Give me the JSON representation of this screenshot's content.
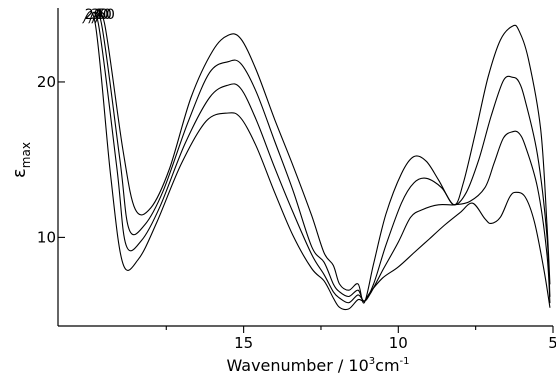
{
  "chart_data": {
    "type": "line",
    "title": "",
    "xlabel": "Wavenumber / 10",
    "xlabel_power": "3",
    "xlabel_unit": "cm",
    "xlabel_unit_power": "-1",
    "ylabel": "ε",
    "ylabel_sub": "max",
    "xlim": [
      21.0,
      5.0
    ],
    "ylim": [
      4.3,
      24.5
    ],
    "x_ticks": [
      {
        "value": 15,
        "label": "15"
      },
      {
        "value": 10,
        "label": "10"
      },
      {
        "value": 5,
        "label": "5"
      }
    ],
    "y_ticks": [
      {
        "value": 10,
        "label": "10"
      },
      {
        "value": 20,
        "label": "20"
      }
    ],
    "x_minor_ticks": [
      17.5,
      12.5,
      7.5
    ],
    "grid": false,
    "legend": "inline labels at first peak",
    "series": [
      {
        "name": "20",
        "x": [
          20.2,
          19.8,
          19.3,
          18.9,
          18.4,
          17.8,
          17.0,
          16.2,
          15.5,
          15.1,
          14.6,
          14.0,
          13.4,
          12.8,
          12.4,
          12.1,
          11.9,
          11.6,
          11.3,
          11.1,
          10.9,
          10.5,
          10.0,
          9.5,
          9.0,
          8.5,
          8.0,
          7.6,
          7.2,
          7.0,
          6.7,
          6.4,
          6.2,
          5.9,
          5.6,
          5.3,
          5.1
        ],
        "values": [
          23.8,
          23.8,
          14.0,
          8.3,
          8.6,
          11.0,
          14.8,
          17.5,
          18.0,
          17.7,
          15.9,
          12.9,
          10.1,
          8.0,
          7.2,
          6.1,
          5.5,
          5.4,
          6.0,
          5.9,
          6.5,
          7.4,
          8.1,
          9.0,
          9.9,
          10.8,
          11.6,
          12.2,
          11.2,
          10.9,
          11.3,
          12.6,
          12.9,
          12.6,
          11.0,
          8.0,
          5.5
        ]
      },
      {
        "name": "30",
        "x": [
          20.0,
          19.7,
          19.1,
          18.8,
          18.3,
          17.7,
          16.9,
          16.1,
          15.5,
          15.1,
          14.6,
          14.0,
          13.4,
          12.8,
          12.4,
          12.1,
          11.9,
          11.6,
          11.3,
          11.1,
          10.9,
          10.5,
          10.0,
          9.6,
          9.2,
          8.7,
          8.2,
          7.7,
          7.2,
          6.9,
          6.6,
          6.3,
          6.1,
          5.9,
          5.5,
          5.2,
          5.1
        ],
        "values": [
          23.8,
          23.8,
          14.5,
          9.5,
          9.8,
          12.0,
          16.0,
          19.0,
          19.8,
          19.6,
          17.6,
          14.5,
          11.6,
          8.9,
          7.6,
          6.5,
          6.1,
          5.8,
          6.3,
          5.9,
          6.4,
          7.9,
          9.7,
          11.3,
          11.8,
          12.1,
          12.1,
          12.3,
          13.2,
          14.8,
          16.4,
          16.8,
          16.7,
          15.9,
          13.2,
          9.0,
          5.8
        ]
      },
      {
        "name": "40",
        "x": [
          19.9,
          19.6,
          19.0,
          18.7,
          18.2,
          17.6,
          16.8,
          16.1,
          15.5,
          15.1,
          14.6,
          14.0,
          13.4,
          12.8,
          12.4,
          12.1,
          11.9,
          11.6,
          11.3,
          11.1,
          10.8,
          10.4,
          9.9,
          9.5,
          9.1,
          8.6,
          8.2,
          7.8,
          7.4,
          7.0,
          6.6,
          6.3,
          6.1,
          5.9,
          5.5,
          5.2,
          5.1
        ],
        "values": [
          23.8,
          23.8,
          15.0,
          10.5,
          10.8,
          13.0,
          17.4,
          20.6,
          21.3,
          21.2,
          19.4,
          16.2,
          13.0,
          9.4,
          8.4,
          7.0,
          6.5,
          6.2,
          6.6,
          5.9,
          7.0,
          9.5,
          12.2,
          13.5,
          13.8,
          13.2,
          12.1,
          12.9,
          15.0,
          17.8,
          20.1,
          20.3,
          20.0,
          18.8,
          15.3,
          10.2,
          6.2
        ]
      },
      {
        "name": "50",
        "x": [
          19.8,
          19.5,
          18.9,
          18.5,
          18.0,
          17.4,
          16.7,
          16.0,
          15.5,
          15.1,
          14.6,
          14.0,
          13.4,
          12.8,
          12.4,
          12.1,
          11.9,
          11.6,
          11.3,
          11.1,
          10.8,
          10.4,
          9.9,
          9.5,
          9.1,
          8.7,
          8.2,
          7.9,
          7.5,
          7.1,
          6.7,
          6.3,
          6.1,
          5.8,
          5.4,
          5.2,
          5.1
        ],
        "values": [
          23.8,
          23.8,
          15.6,
          11.8,
          11.9,
          14.4,
          19.0,
          22.0,
          23.0,
          22.8,
          20.8,
          17.6,
          14.6,
          11.4,
          9.0,
          8.2,
          7.0,
          6.6,
          7.0,
          5.8,
          8.3,
          11.5,
          14.1,
          15.2,
          14.9,
          13.7,
          12.1,
          13.5,
          16.8,
          20.3,
          22.7,
          23.6,
          23.3,
          21.5,
          17.0,
          11.0,
          7.0
        ]
      }
    ]
  }
}
